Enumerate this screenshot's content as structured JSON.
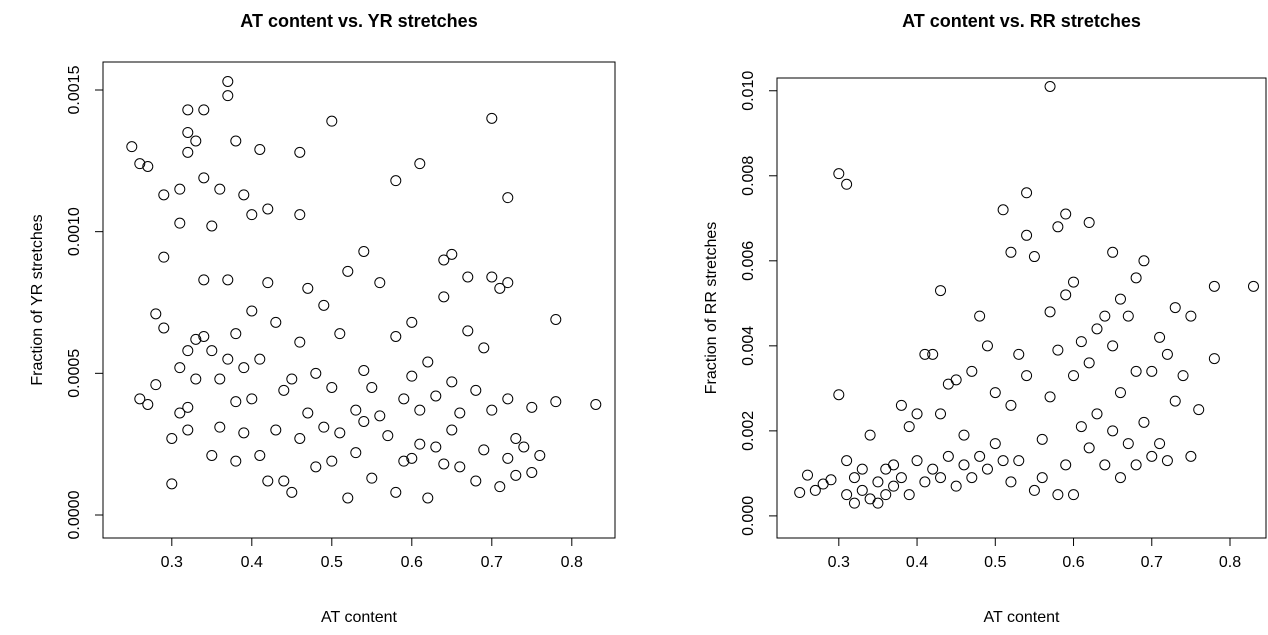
{
  "chart_data": [
    {
      "type": "scatter",
      "title": "AT content vs. YR stretches",
      "x_label": "AT content",
      "y_label": "Fraction of YR stretches",
      "xlim": [
        0.214,
        0.854
      ],
      "ylim": [
        -8.12e-05,
        0.0015988
      ],
      "xticks": [
        0.3,
        0.4,
        0.5,
        0.6,
        0.7,
        0.8
      ],
      "yticks": [
        {
          "value": 0,
          "label": "0.0000"
        },
        {
          "value": 0.0005,
          "label": "0.0005"
        },
        {
          "value": 0.001,
          "label": "0.0010"
        },
        {
          "value": 0.0015,
          "label": "0.0015"
        }
      ],
      "color": "#000000",
      "x": [
        0.25,
        0.26,
        0.27,
        0.29,
        0.31,
        0.31,
        0.32,
        0.32,
        0.32,
        0.33,
        0.34,
        0.34,
        0.35,
        0.36,
        0.37,
        0.37,
        0.38,
        0.39,
        0.4,
        0.41,
        0.42,
        0.46,
        0.46,
        0.5,
        0.58,
        0.61,
        0.7,
        0.72,
        0.26,
        0.27,
        0.28,
        0.28,
        0.29,
        0.29,
        0.3,
        0.3,
        0.31,
        0.31,
        0.32,
        0.32,
        0.32,
        0.33,
        0.33,
        0.34,
        0.34,
        0.35,
        0.35,
        0.36,
        0.36,
        0.37,
        0.37,
        0.38,
        0.38,
        0.38,
        0.39,
        0.39,
        0.4,
        0.4,
        0.41,
        0.41,
        0.42,
        0.42,
        0.43,
        0.43,
        0.44,
        0.44,
        0.45,
        0.45,
        0.46,
        0.46,
        0.47,
        0.47,
        0.48,
        0.48,
        0.49,
        0.49,
        0.5,
        0.5,
        0.51,
        0.51,
        0.52,
        0.52,
        0.53,
        0.53,
        0.54,
        0.54,
        0.54,
        0.55,
        0.55,
        0.56,
        0.56,
        0.57,
        0.58,
        0.58,
        0.59,
        0.59,
        0.6,
        0.6,
        0.6,
        0.61,
        0.61,
        0.62,
        0.62,
        0.63,
        0.63,
        0.64,
        0.64,
        0.64,
        0.65,
        0.65,
        0.65,
        0.66,
        0.66,
        0.67,
        0.67,
        0.68,
        0.68,
        0.69,
        0.69,
        0.7,
        0.7,
        0.71,
        0.71,
        0.72,
        0.72,
        0.72,
        0.73,
        0.73,
        0.74,
        0.75,
        0.75,
        0.76,
        0.78,
        0.78,
        0.83
      ],
      "values": [
        0.0013,
        0.00124,
        0.00123,
        0.00113,
        0.00115,
        0.00103,
        0.00143,
        0.00135,
        0.00128,
        0.00132,
        0.00143,
        0.00119,
        0.00102,
        0.00115,
        0.00153,
        0.00148,
        0.00132,
        0.00113,
        0.00106,
        0.00129,
        0.00108,
        0.00128,
        0.00106,
        0.00139,
        0.00118,
        0.00124,
        0.0014,
        0.00112,
        0.00041,
        0.00039,
        0.00071,
        0.00046,
        0.00091,
        0.00066,
        0.00011,
        0.00027,
        0.00052,
        0.00036,
        0.00058,
        0.00038,
        0.0003,
        0.00048,
        0.00062,
        0.00063,
        0.00083,
        0.00021,
        0.00058,
        0.00048,
        0.00031,
        0.00083,
        0.00055,
        0.00064,
        0.0004,
        0.00019,
        0.00029,
        0.00052,
        0.00072,
        0.00041,
        0.00055,
        0.00021,
        0.00012,
        0.00082,
        0.00068,
        0.0003,
        0.00044,
        0.00012,
        8e-05,
        0.00048,
        0.00061,
        0.00027,
        0.00036,
        0.0008,
        0.0005,
        0.00017,
        0.00074,
        0.00031,
        0.00045,
        0.00019,
        0.00064,
        0.00029,
        0.00086,
        6e-05,
        0.00037,
        0.00022,
        0.00093,
        0.00051,
        0.00033,
        0.00045,
        0.00013,
        0.00082,
        0.00035,
        0.00028,
        0.00063,
        8e-05,
        0.00041,
        0.00019,
        0.00068,
        0.00049,
        0.0002,
        0.00037,
        0.00025,
        6e-05,
        0.00054,
        0.00042,
        0.00024,
        0.0009,
        0.00077,
        0.00018,
        0.00092,
        0.00047,
        0.0003,
        0.00036,
        0.00017,
        0.00084,
        0.00065,
        0.00044,
        0.00012,
        0.00059,
        0.00023,
        0.00084,
        0.00037,
        0.0008,
        0.0001,
        0.00082,
        0.00041,
        0.0002,
        0.00027,
        0.00014,
        0.00024,
        0.00038,
        0.00015,
        0.00021,
        0.00069,
        0.0004,
        0.00039
      ]
    },
    {
      "type": "scatter",
      "title": "AT content vs. RR stretches",
      "x_label": "AT content",
      "y_label": "Fraction of RR stretches",
      "xlim": [
        0.221,
        0.846
      ],
      "ylim": [
        -0.00052,
        0.0103
      ],
      "xticks": [
        0.3,
        0.4,
        0.5,
        0.6,
        0.7,
        0.8
      ],
      "yticks": [
        {
          "value": 0,
          "label": "0.000"
        },
        {
          "value": 0.002,
          "label": "0.002"
        },
        {
          "value": 0.004,
          "label": "0.004"
        },
        {
          "value": 0.006,
          "label": "0.006"
        },
        {
          "value": 0.008,
          "label": "0.008"
        },
        {
          "value": 0.01,
          "label": "0.010"
        }
      ],
      "color": "#000000",
      "x": [
        0.25,
        0.26,
        0.27,
        0.28,
        0.29,
        0.3,
        0.3,
        0.31,
        0.31,
        0.31,
        0.32,
        0.32,
        0.33,
        0.33,
        0.34,
        0.34,
        0.35,
        0.35,
        0.36,
        0.36,
        0.37,
        0.37,
        0.38,
        0.38,
        0.39,
        0.39,
        0.4,
        0.4,
        0.41,
        0.41,
        0.42,
        0.42,
        0.43,
        0.43,
        0.43,
        0.44,
        0.44,
        0.45,
        0.45,
        0.46,
        0.46,
        0.47,
        0.47,
        0.48,
        0.48,
        0.49,
        0.49,
        0.5,
        0.5,
        0.51,
        0.51,
        0.52,
        0.52,
        0.52,
        0.53,
        0.53,
        0.54,
        0.54,
        0.54,
        0.55,
        0.55,
        0.56,
        0.56,
        0.57,
        0.57,
        0.57,
        0.58,
        0.58,
        0.58,
        0.59,
        0.59,
        0.59,
        0.6,
        0.6,
        0.6,
        0.61,
        0.61,
        0.62,
        0.62,
        0.62,
        0.63,
        0.63,
        0.64,
        0.64,
        0.65,
        0.65,
        0.65,
        0.66,
        0.66,
        0.66,
        0.67,
        0.67,
        0.68,
        0.68,
        0.68,
        0.69,
        0.69,
        0.7,
        0.7,
        0.71,
        0.71,
        0.72,
        0.72,
        0.73,
        0.73,
        0.74,
        0.75,
        0.75,
        0.76,
        0.78,
        0.78,
        0.83
      ],
      "values": [
        0.00055,
        0.00096,
        0.0006,
        0.00075,
        0.00085,
        0.00285,
        0.00805,
        0.0078,
        0.0013,
        0.0005,
        0.0009,
        0.0003,
        0.0006,
        0.0011,
        0.0019,
        0.0004,
        0.0008,
        0.0003,
        0.0011,
        0.0005,
        0.0012,
        0.0007,
        0.0026,
        0.0009,
        0.0021,
        0.0005,
        0.0024,
        0.0013,
        0.0038,
        0.0008,
        0.0038,
        0.0011,
        0.0053,
        0.0024,
        0.0009,
        0.0031,
        0.0014,
        0.0032,
        0.0007,
        0.0019,
        0.0012,
        0.0034,
        0.0009,
        0.0047,
        0.0014,
        0.004,
        0.0011,
        0.0029,
        0.0017,
        0.0013,
        0.0072,
        0.0062,
        0.0026,
        0.0008,
        0.0038,
        0.0013,
        0.0076,
        0.0066,
        0.0033,
        0.0061,
        0.0006,
        0.0018,
        0.0009,
        0.0101,
        0.0048,
        0.0028,
        0.0068,
        0.0039,
        0.0005,
        0.0071,
        0.0052,
        0.0012,
        0.0055,
        0.0033,
        0.0005,
        0.0041,
        0.0021,
        0.0069,
        0.0036,
        0.0016,
        0.0044,
        0.0024,
        0.0047,
        0.0012,
        0.0062,
        0.004,
        0.002,
        0.0051,
        0.0029,
        0.0009,
        0.0047,
        0.0017,
        0.0056,
        0.0034,
        0.0012,
        0.006,
        0.0022,
        0.0034,
        0.0014,
        0.0042,
        0.0017,
        0.0038,
        0.0013,
        0.0049,
        0.0027,
        0.0033,
        0.0047,
        0.0014,
        0.0025,
        0.0054,
        0.0037,
        0.0054
      ]
    }
  ]
}
